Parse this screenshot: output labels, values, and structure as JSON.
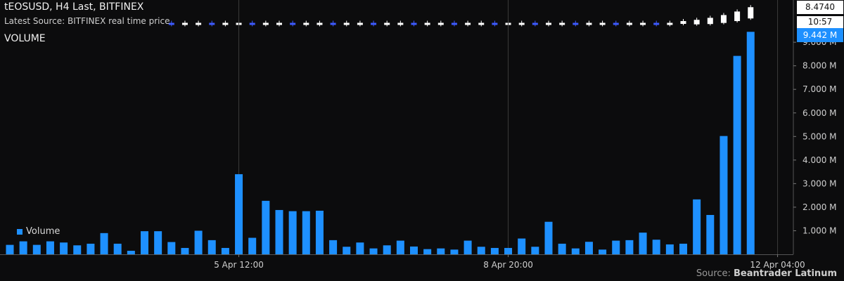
{
  "header": {
    "title": "tEOSUSD, H4 Last, BITFINEX",
    "subtitle": "Latest Source: BITFINEX real time price",
    "panel_label": "VOLUME"
  },
  "price_axis": {
    "last_price": "8.4740",
    "countdown": "10:57"
  },
  "volume_axis": {
    "last_volume": "9.442 M"
  },
  "footer": {
    "source_prefix": "Source: ",
    "source_name": "Beantrader Latinum"
  },
  "colors": {
    "volume": "#1e90ff",
    "up_candle": "#ffffff",
    "down_candle": "#3d5afe",
    "grid": "#3a3a3a",
    "background": "#0c0c0d"
  },
  "chart_data": [
    {
      "type": "candlestick",
      "title": "tEOSUSD, H4 Last, BITFINEX",
      "last_value": 8.474,
      "note": "price candles mostly flat near the upper edge, rising steeply in the last bars"
    },
    {
      "type": "bar",
      "title": "VOLUME",
      "series": [
        {
          "name": "Volume",
          "values": [
            0.4,
            0.55,
            0.4,
            0.55,
            0.5,
            0.38,
            0.45,
            0.9,
            0.45,
            0.15,
            0.98,
            0.98,
            0.52,
            0.27,
            1.0,
            0.6,
            0.27,
            3.4,
            0.7,
            2.27,
            1.88,
            1.83,
            1.83,
            1.85,
            0.6,
            0.32,
            0.5,
            0.25,
            0.38,
            0.58,
            0.33,
            0.22,
            0.25,
            0.2,
            0.58,
            0.32,
            0.27,
            0.27,
            0.67,
            0.32,
            1.38,
            0.45,
            0.25,
            0.53,
            0.2,
            0.58,
            0.6,
            0.92,
            0.62,
            0.42,
            0.45,
            2.33,
            1.67,
            5.02,
            8.42,
            9.442
          ]
        }
      ],
      "ylim": [
        0,
        9.6
      ],
      "y_unit": "M",
      "y_ticks": [
        "1.000 M",
        "2.000 M",
        "3.000 M",
        "4.000 M",
        "5.000 M",
        "6.000 M",
        "7.000 M",
        "8.000 M",
        "9.000 M"
      ],
      "x_ticks": [
        {
          "label": "5 Apr 12:00",
          "index": 17
        },
        {
          "label": "8 Apr 20:00",
          "index": 37
        },
        {
          "label": "12 Apr 04:00",
          "index": 57
        }
      ]
    }
  ]
}
